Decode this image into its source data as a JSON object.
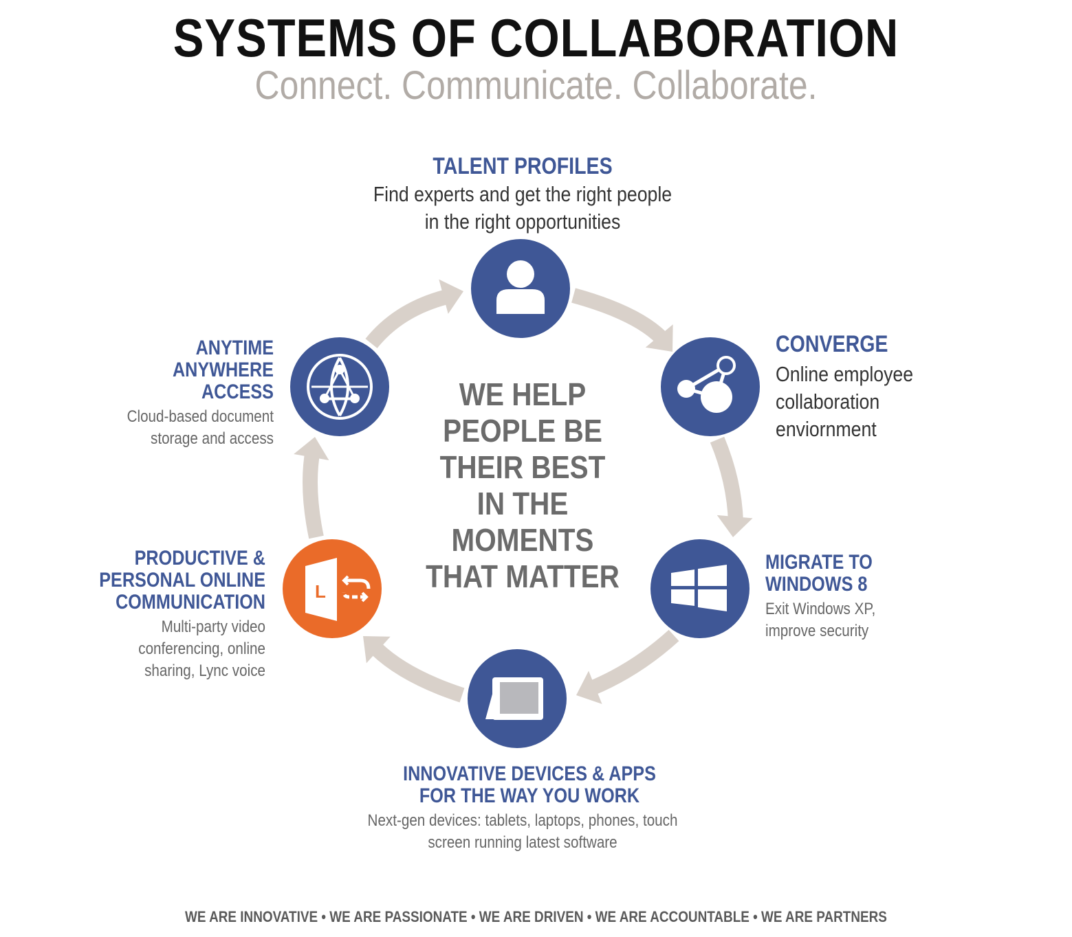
{
  "title": "SYSTEMS OF COLLABORATION",
  "subtitle": "Connect. Communicate. Collaborate.",
  "center_text": [
    "WE HELP",
    "PEOPLE BE",
    "THEIR BEST",
    "IN THE",
    "MOMENTS",
    "THAT MATTER"
  ],
  "colors": {
    "primary": "#3f5796",
    "accent": "#ea6b29",
    "arrow": "#d9d1ca",
    "subtitle": "#b1aba6"
  },
  "nodes": [
    {
      "key": "talent",
      "icon": "person-icon",
      "heading": [
        "TALENT PROFILES"
      ],
      "description": [
        "Find experts and get the right people",
        "in the right opportunities"
      ]
    },
    {
      "key": "converge",
      "icon": "share-network-icon",
      "heading": [
        "CONVERGE"
      ],
      "description": [
        "Online employee",
        "collaboration",
        "enviornment"
      ]
    },
    {
      "key": "windows",
      "icon": "windows-logo-icon",
      "heading": [
        "MIGRATE TO",
        "WINDOWS 8"
      ],
      "description": [
        "Exit Windows XP,",
        "improve security"
      ]
    },
    {
      "key": "devices",
      "icon": "tablet-icon",
      "heading": [
        "INNOVATIVE DEVICES & APPS",
        "FOR THE WAY YOU WORK"
      ],
      "description": [
        "Next-gen devices: tablets, laptops, phones, touch",
        "screen running latest software"
      ]
    },
    {
      "key": "lync",
      "icon": "lync-icon",
      "icon_letter": "L",
      "heading": [
        "PRODUCTIVE &",
        "PERSONAL ONLINE",
        "COMMUNICATION"
      ],
      "description": [
        "Multi-party video",
        "conferencing, online",
        "sharing, Lync voice"
      ]
    },
    {
      "key": "access",
      "icon": "globe-network-icon",
      "heading": [
        "ANYTIME",
        "ANYWHERE",
        "ACCESS"
      ],
      "description": [
        "Cloud-based document",
        "storage and access"
      ]
    }
  ],
  "footer": "WE ARE INNOVATIVE  •  WE ARE PASSIONATE  •  WE ARE DRIVEN  •  WE ARE ACCOUNTABLE  •  WE ARE PARTNERS"
}
